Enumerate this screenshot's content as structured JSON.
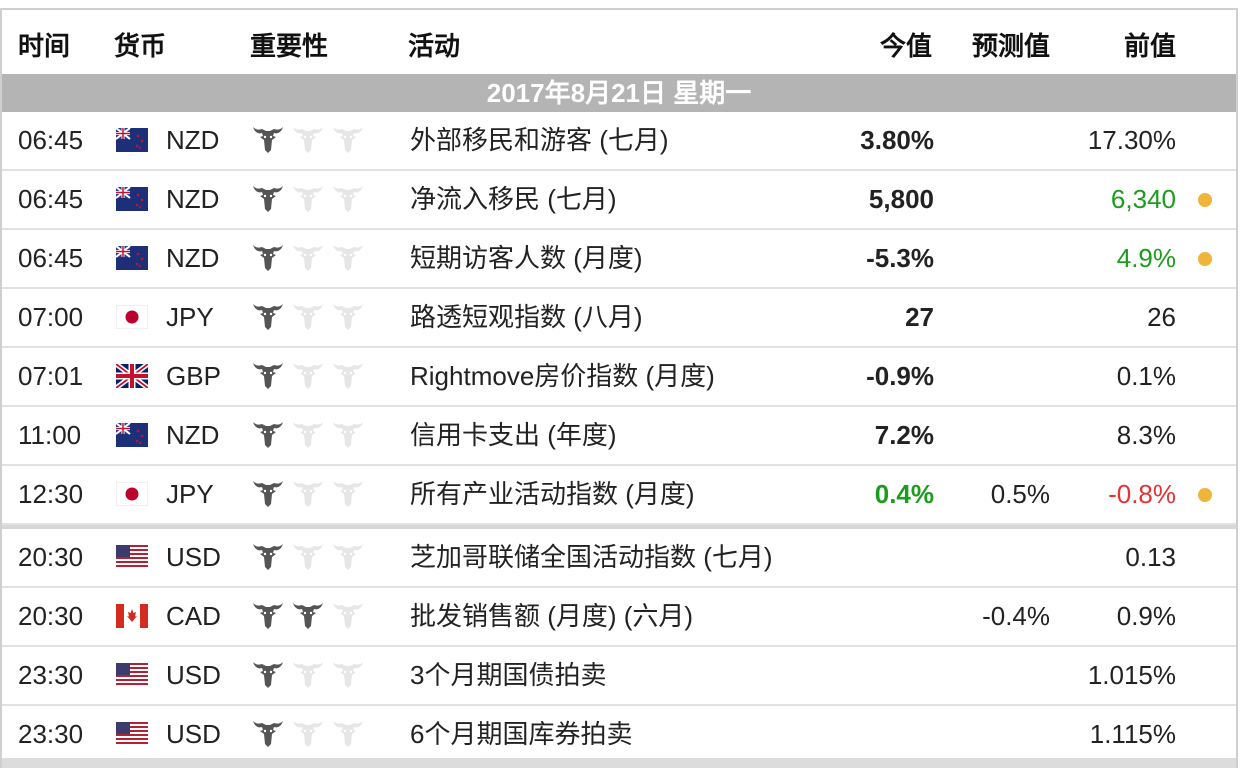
{
  "headers": {
    "time": "时间",
    "currency": "货币",
    "importance": "重要性",
    "event": "活动",
    "actual": "今值",
    "forecast": "预测值",
    "previous": "前值"
  },
  "date_label": "2017年8月21日  星期一",
  "colors": {
    "bull_active": "#555555",
    "bull_inactive": "#e6e6e6",
    "date_bar": "#b4b4b4",
    "positive": "#1c9c1c",
    "negative": "#e53232",
    "alert_dot": "#efb43a"
  },
  "events": [
    {
      "time": "06:45",
      "flag": "nz",
      "currency": "NZD",
      "importance": 1,
      "event": "外部移民和游客 (七月)",
      "actual": "3.80%",
      "forecast": "",
      "previous": "17.30%",
      "actual_color": "",
      "previous_color": "",
      "alert": false,
      "group_start": false
    },
    {
      "time": "06:45",
      "flag": "nz",
      "currency": "NZD",
      "importance": 1,
      "event": "净流入移民 (七月)",
      "actual": "5,800",
      "forecast": "",
      "previous": "6,340",
      "actual_color": "",
      "previous_color": "green",
      "alert": true,
      "group_start": false
    },
    {
      "time": "06:45",
      "flag": "nz",
      "currency": "NZD",
      "importance": 1,
      "event": "短期访客人数 (月度)",
      "actual": "-5.3%",
      "forecast": "",
      "previous": "4.9%",
      "actual_color": "",
      "previous_color": "green",
      "alert": true,
      "group_start": false
    },
    {
      "time": "07:00",
      "flag": "jp",
      "currency": "JPY",
      "importance": 1,
      "event": "路透短观指数 (八月)",
      "actual": "27",
      "forecast": "",
      "previous": "26",
      "actual_color": "",
      "previous_color": "",
      "alert": false,
      "group_start": false
    },
    {
      "time": "07:01",
      "flag": "gb",
      "currency": "GBP",
      "importance": 1,
      "event": "Rightmove房价指数 (月度)",
      "actual": "-0.9%",
      "forecast": "",
      "previous": "0.1%",
      "actual_color": "",
      "previous_color": "",
      "alert": false,
      "group_start": false
    },
    {
      "time": "11:00",
      "flag": "nz",
      "currency": "NZD",
      "importance": 1,
      "event": "信用卡支出 (年度)",
      "actual": "7.2%",
      "forecast": "",
      "previous": "8.3%",
      "actual_color": "",
      "previous_color": "",
      "alert": false,
      "group_start": false
    },
    {
      "time": "12:30",
      "flag": "jp",
      "currency": "JPY",
      "importance": 1,
      "event": "所有产业活动指数 (月度)",
      "actual": "0.4%",
      "forecast": "0.5%",
      "previous": "-0.8%",
      "actual_color": "green",
      "previous_color": "red",
      "alert": true,
      "group_start": false
    },
    {
      "time": "20:30",
      "flag": "us",
      "currency": "USD",
      "importance": 1,
      "event": "芝加哥联储全国活动指数 (七月)",
      "actual": "",
      "forecast": "",
      "previous": "0.13",
      "actual_color": "",
      "previous_color": "",
      "alert": false,
      "group_start": true
    },
    {
      "time": "20:30",
      "flag": "ca",
      "currency": "CAD",
      "importance": 2,
      "event": "批发销售额 (月度) (六月)",
      "actual": "",
      "forecast": "-0.4%",
      "previous": "0.9%",
      "actual_color": "",
      "previous_color": "",
      "alert": false,
      "group_start": false
    },
    {
      "time": "23:30",
      "flag": "us",
      "currency": "USD",
      "importance": 1,
      "event": "3个月期国债拍卖",
      "actual": "",
      "forecast": "",
      "previous": "1.015%",
      "actual_color": "",
      "previous_color": "",
      "alert": false,
      "group_start": false
    },
    {
      "time": "23:30",
      "flag": "us",
      "currency": "USD",
      "importance": 1,
      "event": "6个月期国库券拍卖",
      "actual": "",
      "forecast": "",
      "previous": "1.115%",
      "actual_color": "",
      "previous_color": "",
      "alert": false,
      "group_start": false
    }
  ]
}
